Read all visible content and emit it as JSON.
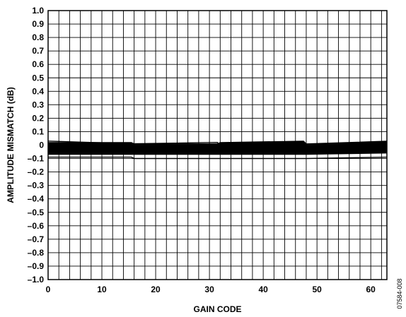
{
  "chart_data": {
    "type": "line",
    "title": "",
    "xlabel": "GAIN CODE",
    "ylabel": "AMPLITUDE MISMATCH (dB)",
    "xlim": [
      0,
      63
    ],
    "ylim": [
      -1.0,
      1.0
    ],
    "grid": true,
    "legend": "none",
    "x_ticks": [
      "0",
      "10",
      "20",
      "30",
      "40",
      "50",
      "60"
    ],
    "x_tick_values": [
      0,
      10,
      20,
      30,
      40,
      50,
      60
    ],
    "y_ticks": [
      "1.0",
      "0.9",
      "0.8",
      "0.7",
      "0.6",
      "0.5",
      "0.4",
      "0.3",
      "0.2",
      "0.1",
      "0",
      "–0.1",
      "–0.2",
      "–0.3",
      "–0.4",
      "–0.5",
      "–0.6",
      "–0.7",
      "–0.8",
      "–0.9",
      "–1.0"
    ],
    "y_tick_values": [
      1.0,
      0.9,
      0.8,
      0.7,
      0.6,
      0.5,
      0.4,
      0.3,
      0.2,
      0.1,
      0,
      -0.1,
      -0.2,
      -0.3,
      -0.4,
      -0.5,
      -0.6,
      -0.7,
      -0.8,
      -0.9,
      -1.0
    ],
    "band": {
      "x": [
        0,
        15.5,
        16,
        31.5,
        32,
        47.5,
        48,
        63
      ],
      "upper": [
        0.02,
        0.02,
        0.01,
        0.01,
        0.02,
        0.03,
        0.01,
        0.03
      ],
      "lower": [
        -0.07,
        -0.07,
        -0.07,
        -0.07,
        -0.07,
        -0.07,
        -0.07,
        -0.06
      ]
    },
    "series": [
      {
        "x": [
          0,
          15.5,
          16,
          31.5,
          32,
          47.5,
          48,
          63
        ],
        "values": [
          -0.09,
          -0.09,
          -0.1,
          -0.1,
          -0.1,
          -0.1,
          -0.1,
          -0.09
        ]
      },
      {
        "x": [
          0,
          16,
          31.5,
          32,
          47.5,
          48,
          63
        ],
        "values": [
          0.03,
          0.01,
          0.02,
          -0.02,
          0.02,
          -0.01,
          0.02
        ]
      }
    ],
    "line_color": "#000000"
  },
  "figure_id": "07584-008"
}
